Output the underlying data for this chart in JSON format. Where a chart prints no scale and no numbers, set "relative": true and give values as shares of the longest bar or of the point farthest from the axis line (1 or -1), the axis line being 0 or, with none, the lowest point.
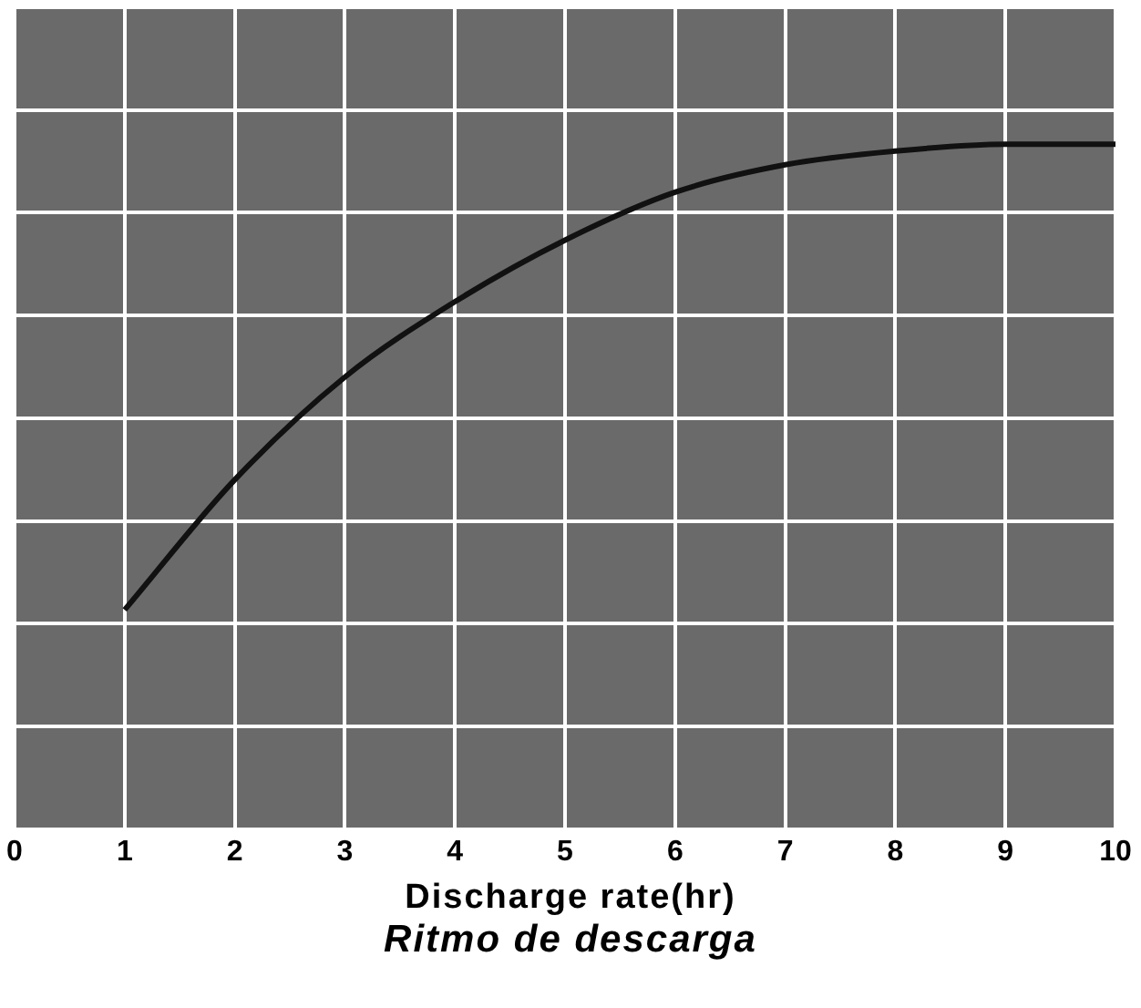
{
  "chart_data": {
    "type": "line",
    "relative": true,
    "x": [
      1,
      2,
      3,
      4,
      5,
      6,
      7,
      8,
      9,
      10
    ],
    "series": [
      {
        "color": "#111111",
        "values": [
          0.32,
          0.51,
          0.66,
          0.77,
          0.86,
          0.93,
          0.97,
          0.99,
          1,
          1
        ]
      }
    ],
    "xlim": [
      0,
      10
    ],
    "xticks": [
      0,
      1,
      2,
      3,
      4,
      5,
      6,
      7,
      8,
      9,
      10
    ],
    "grid": true,
    "legend": false,
    "marker": "none",
    "line_style": "solid",
    "tick_labels": "x",
    "xlabel": "Discharge rate(hr)",
    "annotations": [
      "Ritmo de descarga"
    ]
  }
}
